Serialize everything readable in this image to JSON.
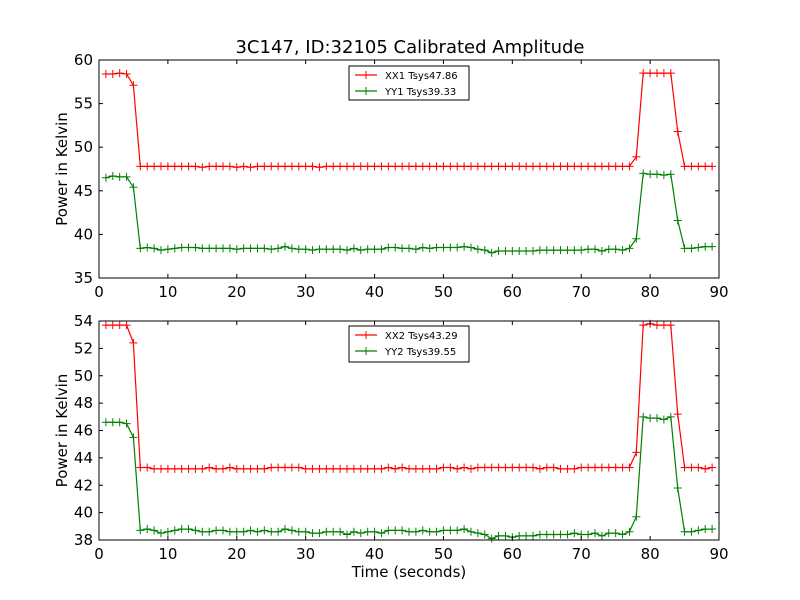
{
  "chart_data": [
    {
      "type": "line",
      "title": "3C147, ID:32105 Calibrated Amplitude",
      "xlabel": "",
      "ylabel": "Power in Kelvin",
      "xlim": [
        0,
        90
      ],
      "ylim": [
        35,
        60
      ],
      "xticks": [
        0,
        10,
        20,
        30,
        40,
        50,
        60,
        70,
        80,
        90
      ],
      "yticks": [
        35,
        40,
        45,
        50,
        55,
        60
      ],
      "grid": false,
      "legend_position": "top-center",
      "colors": {
        "XX1": "#ff0000",
        "YY1": "#008000"
      },
      "x": [
        1,
        2,
        3,
        4,
        5,
        6,
        7,
        8,
        9,
        10,
        11,
        12,
        13,
        14,
        15,
        16,
        17,
        18,
        19,
        20,
        21,
        22,
        23,
        24,
        25,
        26,
        27,
        28,
        29,
        30,
        31,
        32,
        33,
        34,
        35,
        36,
        37,
        38,
        39,
        40,
        41,
        42,
        43,
        44,
        45,
        46,
        47,
        48,
        49,
        50,
        51,
        52,
        53,
        54,
        55,
        56,
        57,
        58,
        59,
        60,
        61,
        62,
        63,
        64,
        65,
        66,
        67,
        68,
        69,
        70,
        71,
        72,
        73,
        74,
        75,
        76,
        77,
        78,
        79,
        80,
        81,
        82,
        83,
        84,
        85,
        86,
        87,
        88,
        89
      ],
      "series": [
        {
          "name": "XX1 Tsys47.86",
          "values": [
            58.4,
            58.4,
            58.5,
            58.4,
            57.1,
            47.8,
            47.8,
            47.8,
            47.8,
            47.8,
            47.8,
            47.8,
            47.8,
            47.8,
            47.7,
            47.8,
            47.8,
            47.8,
            47.8,
            47.7,
            47.8,
            47.7,
            47.8,
            47.8,
            47.8,
            47.8,
            47.8,
            47.8,
            47.8,
            47.8,
            47.8,
            47.7,
            47.8,
            47.8,
            47.8,
            47.8,
            47.8,
            47.8,
            47.8,
            47.8,
            47.8,
            47.8,
            47.8,
            47.8,
            47.8,
            47.8,
            47.8,
            47.8,
            47.8,
            47.8,
            47.8,
            47.8,
            47.8,
            47.8,
            47.8,
            47.8,
            47.8,
            47.8,
            47.8,
            47.8,
            47.8,
            47.8,
            47.8,
            47.8,
            47.8,
            47.8,
            47.8,
            47.8,
            47.8,
            47.8,
            47.8,
            47.8,
            47.8,
            47.8,
            47.8,
            47.8,
            47.8,
            48.9,
            58.5,
            58.5,
            58.5,
            58.5,
            58.5,
            51.8,
            47.8,
            47.8,
            47.8,
            47.8,
            47.8
          ]
        },
        {
          "name": "YY1 Tsys39.33",
          "values": [
            46.5,
            46.7,
            46.6,
            46.6,
            45.4,
            38.4,
            38.5,
            38.4,
            38.2,
            38.3,
            38.4,
            38.5,
            38.5,
            38.5,
            38.4,
            38.4,
            38.4,
            38.4,
            38.4,
            38.3,
            38.4,
            38.4,
            38.4,
            38.4,
            38.3,
            38.4,
            38.6,
            38.4,
            38.3,
            38.3,
            38.2,
            38.3,
            38.3,
            38.3,
            38.3,
            38.2,
            38.4,
            38.2,
            38.3,
            38.3,
            38.3,
            38.5,
            38.5,
            38.4,
            38.4,
            38.3,
            38.5,
            38.4,
            38.5,
            38.5,
            38.5,
            38.5,
            38.6,
            38.5,
            38.3,
            38.2,
            37.9,
            38.1,
            38.1,
            38.1,
            38.1,
            38.1,
            38.1,
            38.2,
            38.2,
            38.2,
            38.2,
            38.2,
            38.2,
            38.2,
            38.3,
            38.3,
            38.1,
            38.3,
            38.3,
            38.2,
            38.4,
            39.5,
            47.0,
            46.9,
            46.9,
            46.8,
            46.9,
            41.6,
            38.4,
            38.4,
            38.5,
            38.6,
            38.6
          ]
        }
      ]
    },
    {
      "type": "line",
      "title": "",
      "xlabel": "Time (seconds)",
      "ylabel": "Power in Kelvin",
      "xlim": [
        0,
        90
      ],
      "ylim": [
        38,
        54
      ],
      "xticks": [
        0,
        10,
        20,
        30,
        40,
        50,
        60,
        70,
        80,
        90
      ],
      "yticks": [
        38,
        40,
        42,
        44,
        46,
        48,
        50,
        52,
        54
      ],
      "grid": false,
      "legend_position": "top-center",
      "colors": {
        "XX2": "#ff0000",
        "YY2": "#008000"
      },
      "x": [
        1,
        2,
        3,
        4,
        5,
        6,
        7,
        8,
        9,
        10,
        11,
        12,
        13,
        14,
        15,
        16,
        17,
        18,
        19,
        20,
        21,
        22,
        23,
        24,
        25,
        26,
        27,
        28,
        29,
        30,
        31,
        32,
        33,
        34,
        35,
        36,
        37,
        38,
        39,
        40,
        41,
        42,
        43,
        44,
        45,
        46,
        47,
        48,
        49,
        50,
        51,
        52,
        53,
        54,
        55,
        56,
        57,
        58,
        59,
        60,
        61,
        62,
        63,
        64,
        65,
        66,
        67,
        68,
        69,
        70,
        71,
        72,
        73,
        74,
        75,
        76,
        77,
        78,
        79,
        80,
        81,
        82,
        83,
        84,
        85,
        86,
        87,
        88,
        89
      ],
      "series": [
        {
          "name": "XX2 Tsys43.29",
          "values": [
            53.7,
            53.7,
            53.7,
            53.7,
            52.4,
            43.3,
            43.3,
            43.2,
            43.2,
            43.2,
            43.2,
            43.2,
            43.2,
            43.2,
            43.2,
            43.3,
            43.2,
            43.2,
            43.3,
            43.2,
            43.2,
            43.2,
            43.2,
            43.2,
            43.3,
            43.3,
            43.3,
            43.3,
            43.3,
            43.2,
            43.2,
            43.2,
            43.2,
            43.2,
            43.2,
            43.2,
            43.2,
            43.2,
            43.2,
            43.2,
            43.2,
            43.3,
            43.2,
            43.3,
            43.2,
            43.2,
            43.2,
            43.2,
            43.2,
            43.3,
            43.3,
            43.2,
            43.3,
            43.2,
            43.3,
            43.3,
            43.3,
            43.3,
            43.3,
            43.3,
            43.3,
            43.3,
            43.3,
            43.2,
            43.3,
            43.3,
            43.2,
            43.2,
            43.2,
            43.3,
            43.3,
            43.3,
            43.3,
            43.3,
            43.3,
            43.3,
            43.3,
            44.4,
            53.7,
            53.8,
            53.7,
            53.7,
            53.7,
            47.2,
            43.3,
            43.3,
            43.3,
            43.2,
            43.3
          ]
        },
        {
          "name": "YY2 Tsys39.55",
          "values": [
            46.6,
            46.6,
            46.6,
            46.5,
            45.5,
            38.7,
            38.8,
            38.7,
            38.5,
            38.6,
            38.7,
            38.8,
            38.8,
            38.7,
            38.6,
            38.6,
            38.7,
            38.7,
            38.6,
            38.6,
            38.6,
            38.7,
            38.6,
            38.7,
            38.6,
            38.6,
            38.8,
            38.7,
            38.6,
            38.6,
            38.5,
            38.5,
            38.6,
            38.6,
            38.6,
            38.4,
            38.6,
            38.5,
            38.6,
            38.6,
            38.5,
            38.7,
            38.7,
            38.7,
            38.6,
            38.6,
            38.7,
            38.6,
            38.6,
            38.7,
            38.7,
            38.7,
            38.8,
            38.6,
            38.5,
            38.4,
            38.1,
            38.3,
            38.3,
            38.2,
            38.3,
            38.3,
            38.3,
            38.4,
            38.4,
            38.4,
            38.4,
            38.4,
            38.5,
            38.4,
            38.4,
            38.5,
            38.3,
            38.5,
            38.5,
            38.4,
            38.6,
            39.7,
            47.0,
            46.9,
            46.9,
            46.8,
            47.0,
            41.8,
            38.6,
            38.6,
            38.7,
            38.8,
            38.8
          ]
        }
      ]
    }
  ]
}
